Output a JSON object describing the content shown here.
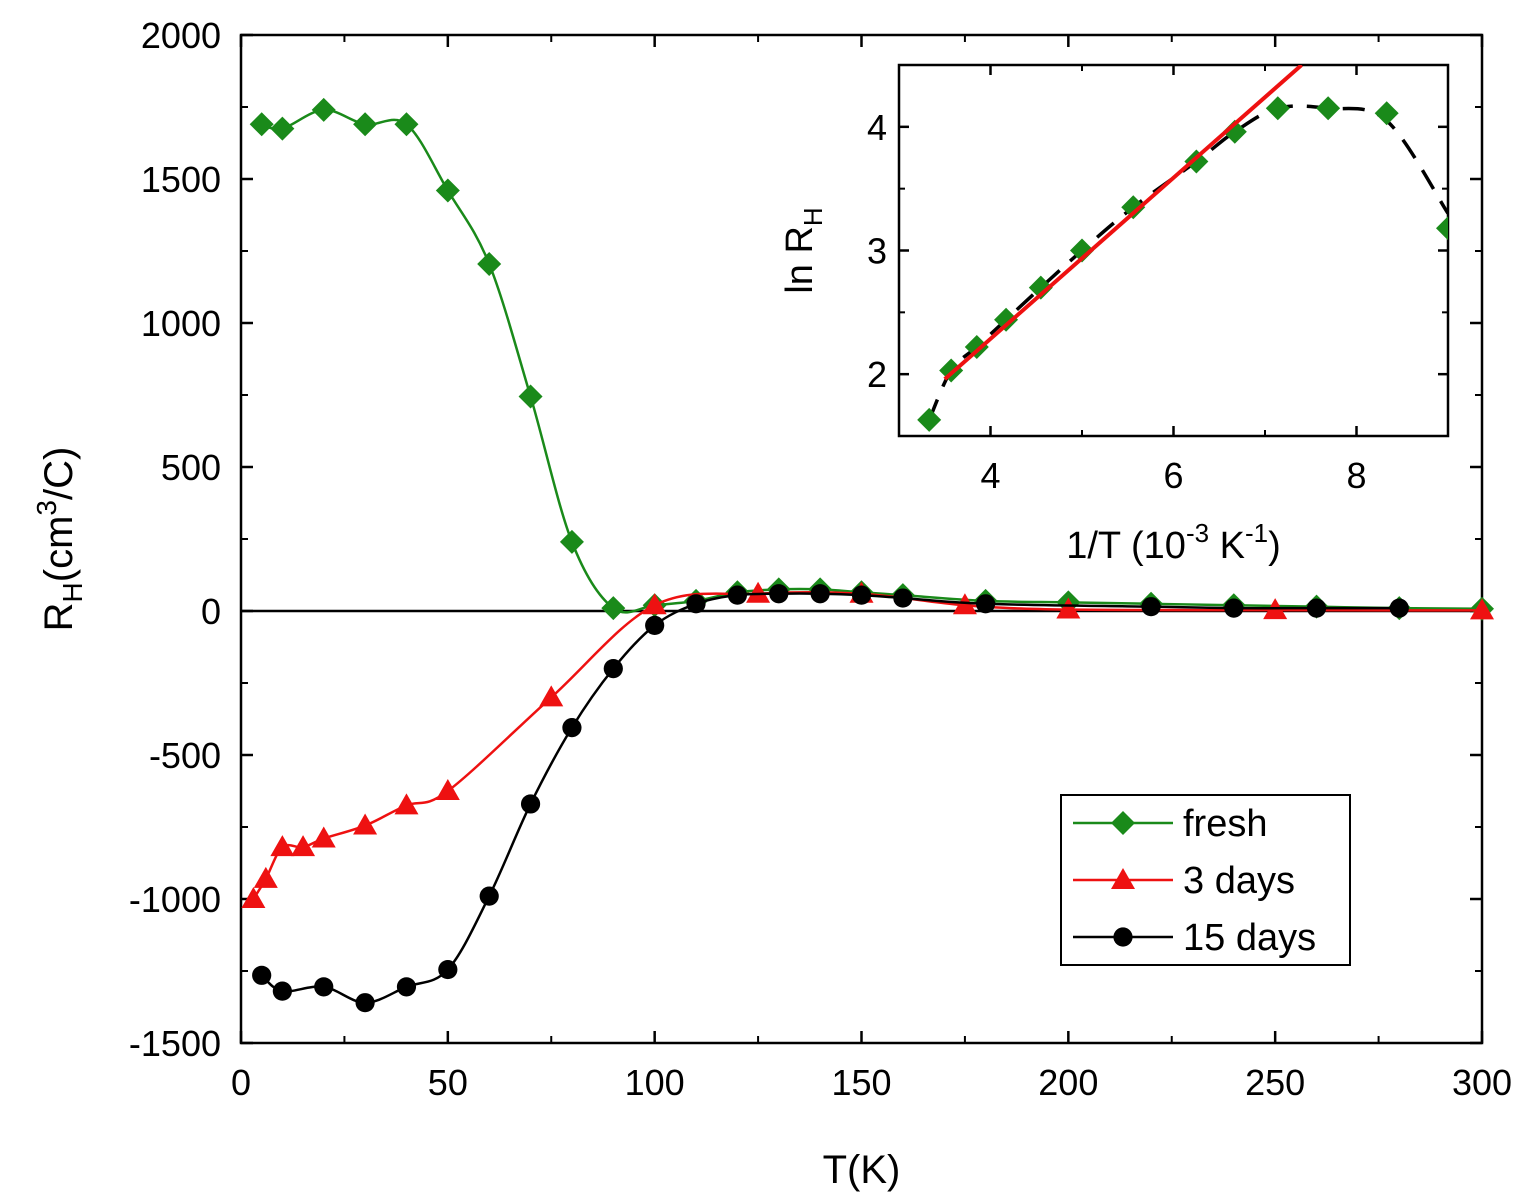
{
  "chart_data": [
    {
      "type": "line",
      "xlabel": "T(K)",
      "ylabel_main": "R",
      "ylabel_sub": "H",
      "ylabel_unit_pre": "(cm",
      "ylabel_unit_sup": "3",
      "ylabel_unit_post": "/C)",
      "xlim": [
        0,
        300
      ],
      "ylim": [
        -1500,
        2000
      ],
      "xticks": [
        "0",
        "50",
        "100",
        "150",
        "200",
        "250",
        "300"
      ],
      "yticks": [
        "-1500",
        "-1000",
        "-500",
        "0",
        "500",
        "1000",
        "1500",
        "2000"
      ],
      "zero_line": true,
      "grid": false,
      "legend_position": "bottom-right",
      "series": [
        {
          "name": "fresh",
          "color": "#1a8a1a",
          "marker": "diamond",
          "x": [
            5,
            10,
            20,
            30,
            40,
            50,
            60,
            70,
            80,
            90,
            100,
            110,
            120,
            130,
            140,
            150,
            160,
            180,
            200,
            220,
            240,
            260,
            280,
            300
          ],
          "y": [
            1690,
            1675,
            1740,
            1690,
            1690,
            1460,
            1205,
            745,
            240,
            10,
            20,
            35,
            65,
            75,
            75,
            65,
            55,
            35,
            30,
            25,
            20,
            15,
            10,
            8
          ]
        },
        {
          "name": "3 days",
          "color": "#ee1111",
          "marker": "triangle",
          "x": [
            3,
            6,
            10,
            15,
            20,
            30,
            40,
            50,
            75,
            100,
            125,
            150,
            175,
            200,
            250,
            300
          ],
          "y": [
            -1000,
            -930,
            -820,
            -820,
            -790,
            -745,
            -675,
            -625,
            -300,
            20,
            60,
            60,
            20,
            5,
            3,
            2
          ]
        },
        {
          "name": "15 days",
          "color": "#000000",
          "marker": "circle",
          "x": [
            5,
            10,
            20,
            30,
            40,
            50,
            60,
            70,
            80,
            90,
            100,
            110,
            120,
            130,
            140,
            150,
            160,
            180,
            220,
            240,
            260,
            280
          ],
          "y": [
            -1265,
            -1320,
            -1305,
            -1360,
            -1305,
            -1245,
            -990,
            -670,
            -405,
            -200,
            -50,
            25,
            55,
            60,
            60,
            55,
            45,
            25,
            15,
            10,
            10,
            10
          ]
        }
      ]
    },
    {
      "type": "scatter",
      "inset": true,
      "ylabel_main": "ln R",
      "ylabel_sub": "H",
      "xlabel_pre": "1/T (10",
      "xlabel_sup1": "-3",
      "xlabel_mid": " K",
      "xlabel_sup2": "-1",
      "xlabel_post": ")",
      "xlim": [
        3.0,
        9.0
      ],
      "ylim": [
        1.5,
        4.5
      ],
      "xticks": [
        "4",
        "6",
        "8"
      ],
      "yticks": [
        "2",
        "3",
        "4"
      ],
      "points": {
        "color": "#1a8a1a",
        "marker": "diamond",
        "x": [
          3.33,
          3.57,
          3.85,
          4.17,
          4.55,
          5.0,
          5.56,
          6.25,
          6.67,
          7.14,
          7.69,
          8.33,
          9.0
        ],
        "y": [
          1.63,
          2.03,
          2.22,
          2.44,
          2.7,
          3.0,
          3.35,
          3.72,
          3.96,
          4.15,
          4.15,
          4.11,
          3.18
        ]
      },
      "fit_line": {
        "color": "#ee1111",
        "x": [
          3.5,
          7.4
        ],
        "y": [
          1.96,
          4.5
        ]
      },
      "trend_line": {
        "color": "#000000",
        "x": [
          3.33,
          3.57,
          3.85,
          4.17,
          4.55,
          5.0,
          5.56,
          6.25,
          6.67,
          7.14,
          7.69,
          8.33,
          9.0
        ],
        "y": [
          1.63,
          2.03,
          2.22,
          2.44,
          2.7,
          3.0,
          3.35,
          3.72,
          3.96,
          4.15,
          4.15,
          4.05,
          3.3
        ]
      }
    }
  ]
}
